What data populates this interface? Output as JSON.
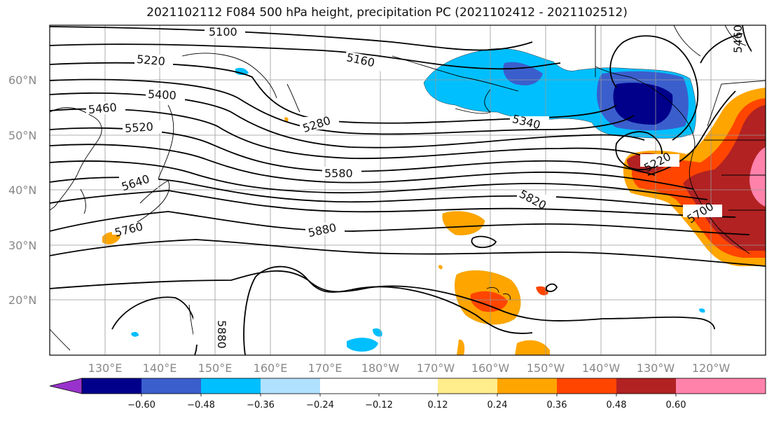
{
  "title": "2021102112 F084 500 hPa height, precipitation PC (2021102412 - 2021102512)",
  "lat_labels": [
    "60°N",
    "50°N",
    "40°N",
    "30°N",
    "20°N"
  ],
  "lon_labels": [
    "130°E",
    "140°E",
    "150°E",
    "160°E",
    "170°E",
    "180°W",
    "170°W",
    "160°W",
    "150°W",
    "140°W",
    "130°W",
    "120°W"
  ],
  "contour_labels": [
    "5100",
    "5160",
    "5220",
    "5400",
    "5460",
    "5520",
    "5280",
    "5340",
    "5580",
    "5640",
    "5760",
    "5820",
    "5880",
    "5880",
    "5220",
    "5700",
    "5460"
  ],
  "colorbar": {
    "tick_labels": [
      "−0.60",
      "−0.48",
      "−0.36",
      "−0.24",
      "−0.12",
      "0.12",
      "0.24",
      "0.36",
      "0.48",
      "0.60"
    ],
    "colors": [
      "#9932cc",
      "#00008b",
      "#3a5fcd",
      "#00bfff",
      "#b0e2ff",
      "#ffffff",
      "#ffec8b",
      "#ffa500",
      "#ff4500",
      "#b22222",
      "#ff82ab"
    ]
  }
}
